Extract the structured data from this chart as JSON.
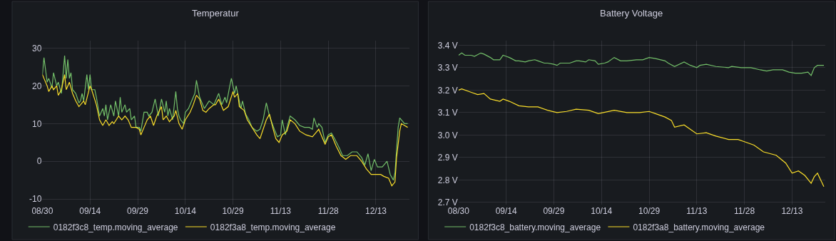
{
  "chart_data": [
    {
      "type": "line",
      "title": "Temperatur",
      "legend": "bottom",
      "grid": true,
      "marker": "none",
      "line_style": "solid",
      "xlim": [
        "--08-30",
        "--12-23T12:00"
      ],
      "xticks": [
        {
          "value": "--08-30",
          "label": "08/30"
        },
        {
          "value": "--09-14",
          "label": "09/14"
        },
        {
          "value": "--09-29",
          "label": "09/29"
        },
        {
          "value": "--10-14",
          "label": "10/14"
        },
        {
          "value": "--10-29",
          "label": "10/29"
        },
        {
          "value": "--11-13",
          "label": "11/13"
        },
        {
          "value": "--11-28",
          "label": "11/28"
        },
        {
          "value": "--12-13",
          "label": "12/13"
        }
      ],
      "ylim": [
        -11.5,
        32
      ],
      "yticks": [
        -10,
        0,
        10,
        20,
        30
      ],
      "series": [
        {
          "name": "0182f3c8_temp.moving_average",
          "color": "#73bf69",
          "x": [
            "--08-30",
            "--08-30T12:00",
            "--08-31T12:00",
            "--09-01",
            "--09-02",
            "--09-02T12:00",
            "--09-03T12:00",
            "--09-04",
            "--09-05",
            "--09-06",
            "--09-06T12:00",
            "--09-07",
            "--09-07T12:00",
            "--09-08",
            "--09-08T12:00",
            "--09-09T12:00",
            "--09-10T12:00",
            "--09-11",
            "--09-11T12:00",
            "--09-12",
            "--09-13",
            "--09-13T12:00",
            "--09-14",
            "--09-14T12:00",
            "--09-15T12:00",
            "--09-16",
            "--09-17",
            "--09-18",
            "--09-18T12:00",
            "--09-19",
            "--09-19T12:00",
            "--09-20T12:00",
            "--09-21T12:00",
            "--09-22",
            "--09-23",
            "--09-23T12:00",
            "--09-24",
            "--09-25",
            "--09-25T12:00",
            "--09-26T12:00",
            "--09-27",
            "--09-28",
            "--09-28T12:00",
            "--09-29T12:00",
            "--09-30",
            "--10-01",
            "--10-02",
            "--10-02T12:00",
            "--10-03T12:00",
            "--10-04T12:00",
            "--10-05T12:00",
            "--10-06T12:00",
            "--10-07T12:00",
            "--10-08",
            "--10-08T12:00",
            "--10-09",
            "--10-10",
            "--10-11",
            "--10-11T12:00",
            "--10-12",
            "--10-12T12:00",
            "--10-13T12:00",
            "--10-14",
            "--10-15",
            "--10-16",
            "--10-17",
            "--10-17T12:00",
            "--10-18T12:00",
            "--10-19T12:00",
            "--10-20",
            "--10-21T12:00",
            "--10-23",
            "--10-23T12:00",
            "--10-24T12:00",
            "--10-25T12:00",
            "--10-26T12:00",
            "--10-27",
            "--10-28",
            "--10-28T12:00",
            "--10-29T12:00",
            "--10-30",
            "--10-30T12:00",
            "--10-31T12:00",
            "--11-01",
            "--11-02",
            "--11-03",
            "--11-04",
            "--11-05T12:00",
            "--11-06T12:00",
            "--11-07T12:00",
            "--11-08T12:00",
            "--11-09T12:00",
            "--11-11",
            "--11-12",
            "--11-13",
            "--11-13T12:00",
            "--11-14T12:00",
            "--11-15",
            "--11-16",
            "--11-17T12:00",
            "--11-19",
            "--11-20T12:00",
            "--11-22",
            "--11-23",
            "--11-23T12:00",
            "--11-24T12:00",
            "--11-25",
            "--11-26",
            "--11-27",
            "--11-28",
            "--11-29",
            "--11-30",
            "--12-01T12:00",
            "--12-02T12:00",
            "--12-04",
            "--12-05T12:00",
            "--12-07",
            "--12-08T12:00",
            "--12-09T12:00",
            "--12-10T12:00",
            "--12-11T12:00",
            "--12-12T12:00",
            "--12-13T12:00",
            "--12-15",
            "--12-16T12:00",
            "--12-17T12:00",
            "--12-18T12:00",
            "--12-19",
            "--12-20",
            "--12-20T12:00",
            "--12-22",
            "--12-23"
          ],
          "values": [
            23,
            27.5,
            21,
            22,
            19.5,
            23.5,
            20,
            21,
            18,
            28,
            22,
            27,
            22,
            23.5,
            19,
            18,
            15.5,
            16,
            18,
            16,
            23,
            19,
            23,
            19,
            19,
            17,
            12,
            14,
            12,
            15,
            11,
            15,
            12,
            16,
            12,
            17,
            13,
            15,
            13,
            14,
            11,
            12,
            9,
            9,
            8,
            13,
            13,
            12,
            13,
            16.5,
            12,
            16.5,
            13,
            16,
            12,
            14,
            11,
            18.5,
            14,
            12,
            11,
            10,
            13,
            14,
            16,
            18,
            21.5,
            17,
            15,
            14,
            16,
            15,
            16,
            18,
            15,
            17,
            15.5,
            20,
            22,
            18,
            20,
            18,
            14,
            16,
            12.5,
            11,
            9,
            8,
            8.5,
            11,
            15.5,
            12,
            8.5,
            6.5,
            7,
            11,
            7,
            9,
            12,
            11,
            9.5,
            9,
            9,
            8.5,
            11.5,
            9,
            10,
            9,
            5,
            7,
            7.5,
            6,
            3.5,
            1.5,
            1.5,
            2.5,
            2.5,
            1,
            -1,
            2,
            -2.5,
            0.5,
            -1.5,
            -1.5,
            0,
            -3.5,
            -5,
            -3,
            9,
            11.5,
            10,
            10
          ]
        },
        {
          "name": "0182f3a8_temp.moving_average",
          "color": "#fade2a",
          "x": [
            "--08-30",
            "--08-30T12:00",
            "--08-31T12:00",
            "--09-01",
            "--09-02",
            "--09-02T12:00",
            "--09-03T12:00",
            "--09-04",
            "--09-05",
            "--09-06",
            "--09-06T12:00",
            "--09-07T12:00",
            "--09-08T12:00",
            "--09-09T12:00",
            "--09-10T12:00",
            "--09-12",
            "--09-12T12:00",
            "--09-14",
            "--09-14T12:00",
            "--09-16",
            "--09-17",
            "--09-18",
            "--09-19",
            "--09-20",
            "--09-21",
            "--09-21T12:00",
            "--09-23",
            "--09-24",
            "--09-25",
            "--09-26",
            "--09-27",
            "--09-28T12:00",
            "--09-29T12:00",
            "--09-30",
            "--10-01",
            "--10-02",
            "--10-03",
            "--10-04",
            "--10-05",
            "--10-06T12:00",
            "--10-07",
            "--10-08",
            "--10-09",
            "--10-10T12:00",
            "--10-11",
            "--10-12",
            "--10-13",
            "--10-14",
            "--10-15T12:00",
            "--10-16T12:00",
            "--10-17T12:00",
            "--10-18T12:00",
            "--10-19T12:00",
            "--10-20T12:00",
            "--10-21T12:00",
            "--10-23",
            "--10-23T12:00",
            "--10-24T12:00",
            "--10-26",
            "--10-27T12:00",
            "--10-29",
            "--10-29T12:00",
            "--10-30T12:00",
            "--10-31",
            "--11-01T12:00",
            "--11-02T12:00",
            "--11-04",
            "--11-05T12:00",
            "--11-06T12:00",
            "--11-07T12:00",
            "--11-08T12:00",
            "--11-09T12:00",
            "--11-10T12:00",
            "--11-11T12:00",
            "--11-12T12:00",
            "--11-13T12:00",
            "--11-15",
            "--11-16",
            "--11-17T12:00",
            "--11-19",
            "--11-21",
            "--11-23",
            "--11-24",
            "--11-25",
            "--11-27",
            "--11-28",
            "--11-29",
            "--11-30T12:00",
            "--12-02",
            "--12-03T12:00",
            "--12-05",
            "--12-07",
            "--12-08T12:00",
            "--12-10",
            "--12-11T12:00",
            "--12-13",
            "--12-14T12:00",
            "--12-15T12:00",
            "--12-17",
            "--12-18",
            "--12-19",
            "--12-19T12:00",
            "--12-20T12:00",
            "--12-21",
            "--12-22",
            "--12-23"
          ],
          "values": [
            23,
            22,
            20,
            18.5,
            20,
            19,
            20,
            17.5,
            19,
            23,
            19,
            21,
            18,
            16,
            14.5,
            16,
            15,
            20,
            19,
            15,
            11,
            9.5,
            11,
            9.5,
            10.5,
            10,
            12,
            11,
            12,
            11,
            9,
            9,
            8.5,
            7,
            9,
            11,
            12,
            9.5,
            12,
            14.5,
            11,
            12,
            10.5,
            12,
            13.5,
            10,
            8.5,
            11,
            13,
            15,
            17.5,
            16.5,
            13.5,
            13,
            14,
            15,
            15,
            16.5,
            13.5,
            14.5,
            18.5,
            17,
            18,
            14.5,
            13.5,
            11,
            9,
            7,
            6,
            8.5,
            11,
            12.5,
            9,
            6,
            5,
            7,
            8,
            11,
            10,
            8,
            7,
            6.5,
            7.5,
            8.5,
            4.5,
            6.5,
            7,
            4,
            1.5,
            0.5,
            1.5,
            1.5,
            0,
            -2,
            -3.5,
            -3.5,
            -3.5,
            -4,
            -4.5,
            -6.5,
            -5.5,
            1,
            8,
            10,
            9.5,
            9
          ]
        }
      ]
    },
    {
      "type": "line",
      "title": "Battery Voltage",
      "legend": "bottom",
      "grid": true,
      "marker": "none",
      "line_style": "solid",
      "xlim": [
        "--08-30",
        "--12-23T12:00"
      ],
      "xticks": [
        {
          "value": "--08-30",
          "label": "08/30"
        },
        {
          "value": "--09-14",
          "label": "09/14"
        },
        {
          "value": "--09-29",
          "label": "09/29"
        },
        {
          "value": "--10-14",
          "label": "10/14"
        },
        {
          "value": "--10-29",
          "label": "10/29"
        },
        {
          "value": "--11-13",
          "label": "11/13"
        },
        {
          "value": "--11-28",
          "label": "11/28"
        },
        {
          "value": "--12-13",
          "label": "12/13"
        }
      ],
      "ylim": [
        2.69,
        3.42
      ],
      "yticks": [
        {
          "value": 2.7,
          "label": "2.7 V"
        },
        {
          "value": 2.8,
          "label": "2.8 V"
        },
        {
          "value": 2.9,
          "label": "2.9 V"
        },
        {
          "value": 3.0,
          "label": "3.0 V"
        },
        {
          "value": 3.1,
          "label": "3.1 V"
        },
        {
          "value": 3.2,
          "label": "3.2 V"
        },
        {
          "value": 3.3,
          "label": "3.3 V"
        },
        {
          "value": 3.4,
          "label": "3.4 V"
        }
      ],
      "series": [
        {
          "name": "0182f3c8_battery.moving_average",
          "color": "#73bf69",
          "x": [
            "--08-30",
            "--08-31",
            "--09-01",
            "--09-03",
            "--09-04",
            "--09-06",
            "--09-07",
            "--09-09",
            "--09-10",
            "--09-12",
            "--09-13",
            "--09-14",
            "--09-15",
            "--09-17",
            "--09-18",
            "--09-20",
            "--09-21",
            "--09-23",
            "--09-24",
            "--09-26",
            "--09-27",
            "--09-29",
            "--09-30",
            "--10-01",
            "--10-03",
            "--10-04",
            "--10-06",
            "--10-07",
            "--10-09",
            "--10-10",
            "--10-12",
            "--10-13",
            "--10-15",
            "--10-16",
            "--10-18",
            "--10-20",
            "--10-22",
            "--10-25",
            "--10-27",
            "--10-29",
            "--10-31",
            "--11-03",
            "--11-04",
            "--11-06",
            "--11-09",
            "--11-11",
            "--11-13",
            "--11-14",
            "--11-16",
            "--11-19",
            "--11-23",
            "--11-24",
            "--11-27",
            "--11-30",
            "--12-03",
            "--12-05",
            "--12-07",
            "--12-10",
            "--12-12",
            "--12-14",
            "--12-16",
            "--12-18",
            "--12-19",
            "--12-20",
            "--12-21",
            "--12-23"
          ],
          "values": [
            3.355,
            3.365,
            3.355,
            3.355,
            3.35,
            3.365,
            3.36,
            3.345,
            3.335,
            3.335,
            3.355,
            3.35,
            3.345,
            3.33,
            3.33,
            3.325,
            3.33,
            3.335,
            3.33,
            3.32,
            3.32,
            3.315,
            3.31,
            3.32,
            3.32,
            3.32,
            3.33,
            3.33,
            3.325,
            3.335,
            3.33,
            3.315,
            3.32,
            3.325,
            3.345,
            3.33,
            3.33,
            3.335,
            3.335,
            3.345,
            3.34,
            3.33,
            3.32,
            3.305,
            3.325,
            3.31,
            3.3,
            3.31,
            3.315,
            3.305,
            3.3,
            3.305,
            3.3,
            3.3,
            3.29,
            3.285,
            3.29,
            3.29,
            3.28,
            3.275,
            3.275,
            3.28,
            3.265,
            3.3,
            3.31,
            3.31
          ]
        },
        {
          "name": "0182f3a8_battery.moving_average",
          "color": "#fade2a",
          "x": [
            "--08-30",
            "--08-31",
            "--09-03",
            "--09-05",
            "--09-07",
            "--09-09",
            "--09-12",
            "--09-13",
            "--09-15",
            "--09-18",
            "--09-21",
            "--09-24",
            "--09-27",
            "--09-30",
            "--10-03",
            "--10-06",
            "--10-10",
            "--10-13",
            "--10-18",
            "--10-22",
            "--10-26",
            "--10-29",
            "--10-31",
            "--11-03",
            "--11-05",
            "--11-06",
            "--11-09",
            "--11-13",
            "--11-16",
            "--11-19",
            "--11-23",
            "--11-26",
            "--11-28",
            "--12-01",
            "--12-04",
            "--12-08",
            "--12-11",
            "--12-13",
            "--12-15",
            "--12-17",
            "--12-19",
            "--12-20",
            "--12-21",
            "--12-23"
          ],
          "values": [
            3.2,
            3.205,
            3.19,
            3.18,
            3.185,
            3.16,
            3.15,
            3.16,
            3.15,
            3.13,
            3.125,
            3.125,
            3.11,
            3.1,
            3.105,
            3.115,
            3.11,
            3.095,
            3.11,
            3.1,
            3.1,
            3.105,
            3.095,
            3.08,
            3.065,
            3.035,
            3.045,
            3.005,
            3.01,
            2.995,
            2.98,
            2.98,
            2.97,
            2.955,
            2.925,
            2.91,
            2.875,
            2.83,
            2.84,
            2.82,
            2.785,
            2.815,
            2.83,
            2.77
          ]
        }
      ]
    }
  ]
}
